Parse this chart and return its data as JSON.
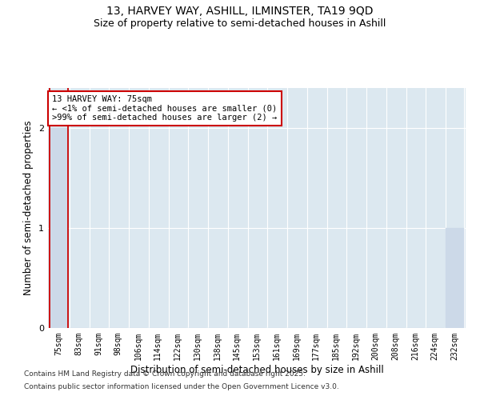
{
  "title_line1": "13, HARVEY WAY, ASHILL, ILMINSTER, TA19 9QD",
  "title_line2": "Size of property relative to semi-detached houses in Ashill",
  "xlabel": "Distribution of semi-detached houses by size in Ashill",
  "ylabel": "Number of semi-detached properties",
  "footnote_line1": "Contains HM Land Registry data © Crown copyright and database right 2025.",
  "footnote_line2": "Contains public sector information licensed under the Open Government Licence v3.0.",
  "categories": [
    "75sqm",
    "83sqm",
    "91sqm",
    "98sqm",
    "106sqm",
    "114sqm",
    "122sqm",
    "130sqm",
    "138sqm",
    "145sqm",
    "153sqm",
    "161sqm",
    "169sqm",
    "177sqm",
    "185sqm",
    "192sqm",
    "200sqm",
    "208sqm",
    "216sqm",
    "224sqm",
    "232sqm"
  ],
  "values": [
    2,
    0,
    0,
    0,
    0,
    0,
    0,
    0,
    0,
    0,
    0,
    0,
    0,
    0,
    0,
    0,
    0,
    0,
    0,
    0,
    1
  ],
  "bar_color": "#ccd9e8",
  "highlight_index": 0,
  "highlight_line_color": "#cc0000",
  "ylim": [
    0,
    2.4
  ],
  "yticks": [
    0,
    1,
    2
  ],
  "bg_color": "#ffffff",
  "plot_bg_color": "#dce8f0",
  "grid_color": "#ffffff",
  "annotation_text_line1": "13 HARVEY WAY: 75sqm",
  "annotation_text_line2": "← <1% of semi-detached houses are smaller (0)",
  "annotation_text_line3": ">99% of semi-detached houses are larger (2) →",
  "annotation_box_color": "#ffffff",
  "annotation_border_color": "#cc0000",
  "title_fontsize": 10,
  "subtitle_fontsize": 9,
  "axis_label_fontsize": 8.5,
  "tick_fontsize": 7,
  "annotation_fontsize": 7.5,
  "footnote_fontsize": 6.5
}
